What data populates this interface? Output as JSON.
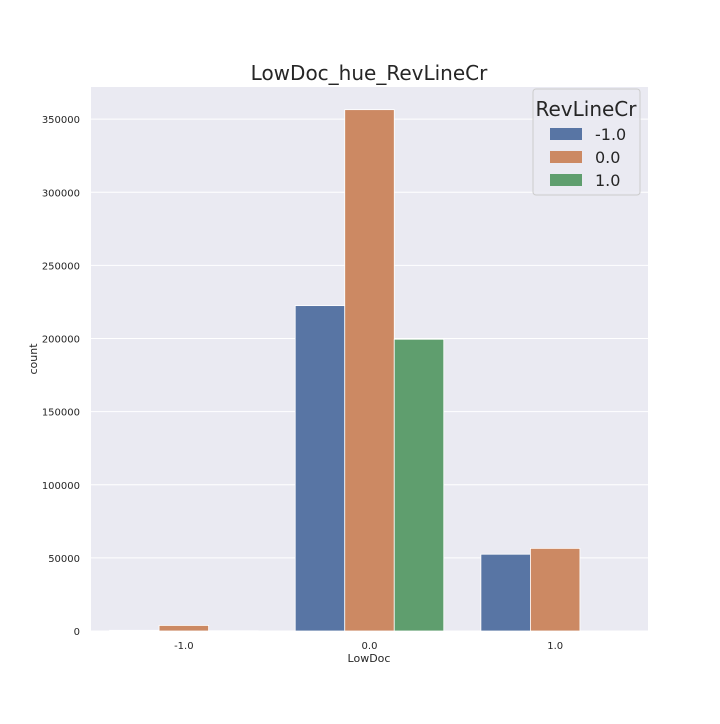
{
  "chart_data": {
    "type": "bar",
    "title": "LowDoc_hue_RevLineCr",
    "xlabel": "LowDoc",
    "ylabel": "count",
    "categories": [
      "-1.0",
      "0.0",
      "1.0"
    ],
    "ylim": [
      0,
      372000
    ],
    "yticks": [
      0,
      50000,
      100000,
      150000,
      200000,
      250000,
      300000,
      350000
    ],
    "ytick_labels": [
      "0",
      "50000",
      "100000",
      "150000",
      "200000",
      "250000",
      "300000",
      "350000"
    ],
    "grid": true,
    "legend": {
      "title": "RevLineCr",
      "placement": "top-right"
    },
    "series": [
      {
        "name": "-1.0",
        "color": "#5875a4",
        "values": [
          500,
          222500,
          52500
        ]
      },
      {
        "name": "0.0",
        "color": "#cc8963",
        "values": [
          3800,
          356500,
          56500
        ]
      },
      {
        "name": "1.0",
        "color": "#5f9e6e",
        "values": [
          200,
          199500,
          0
        ]
      }
    ]
  }
}
